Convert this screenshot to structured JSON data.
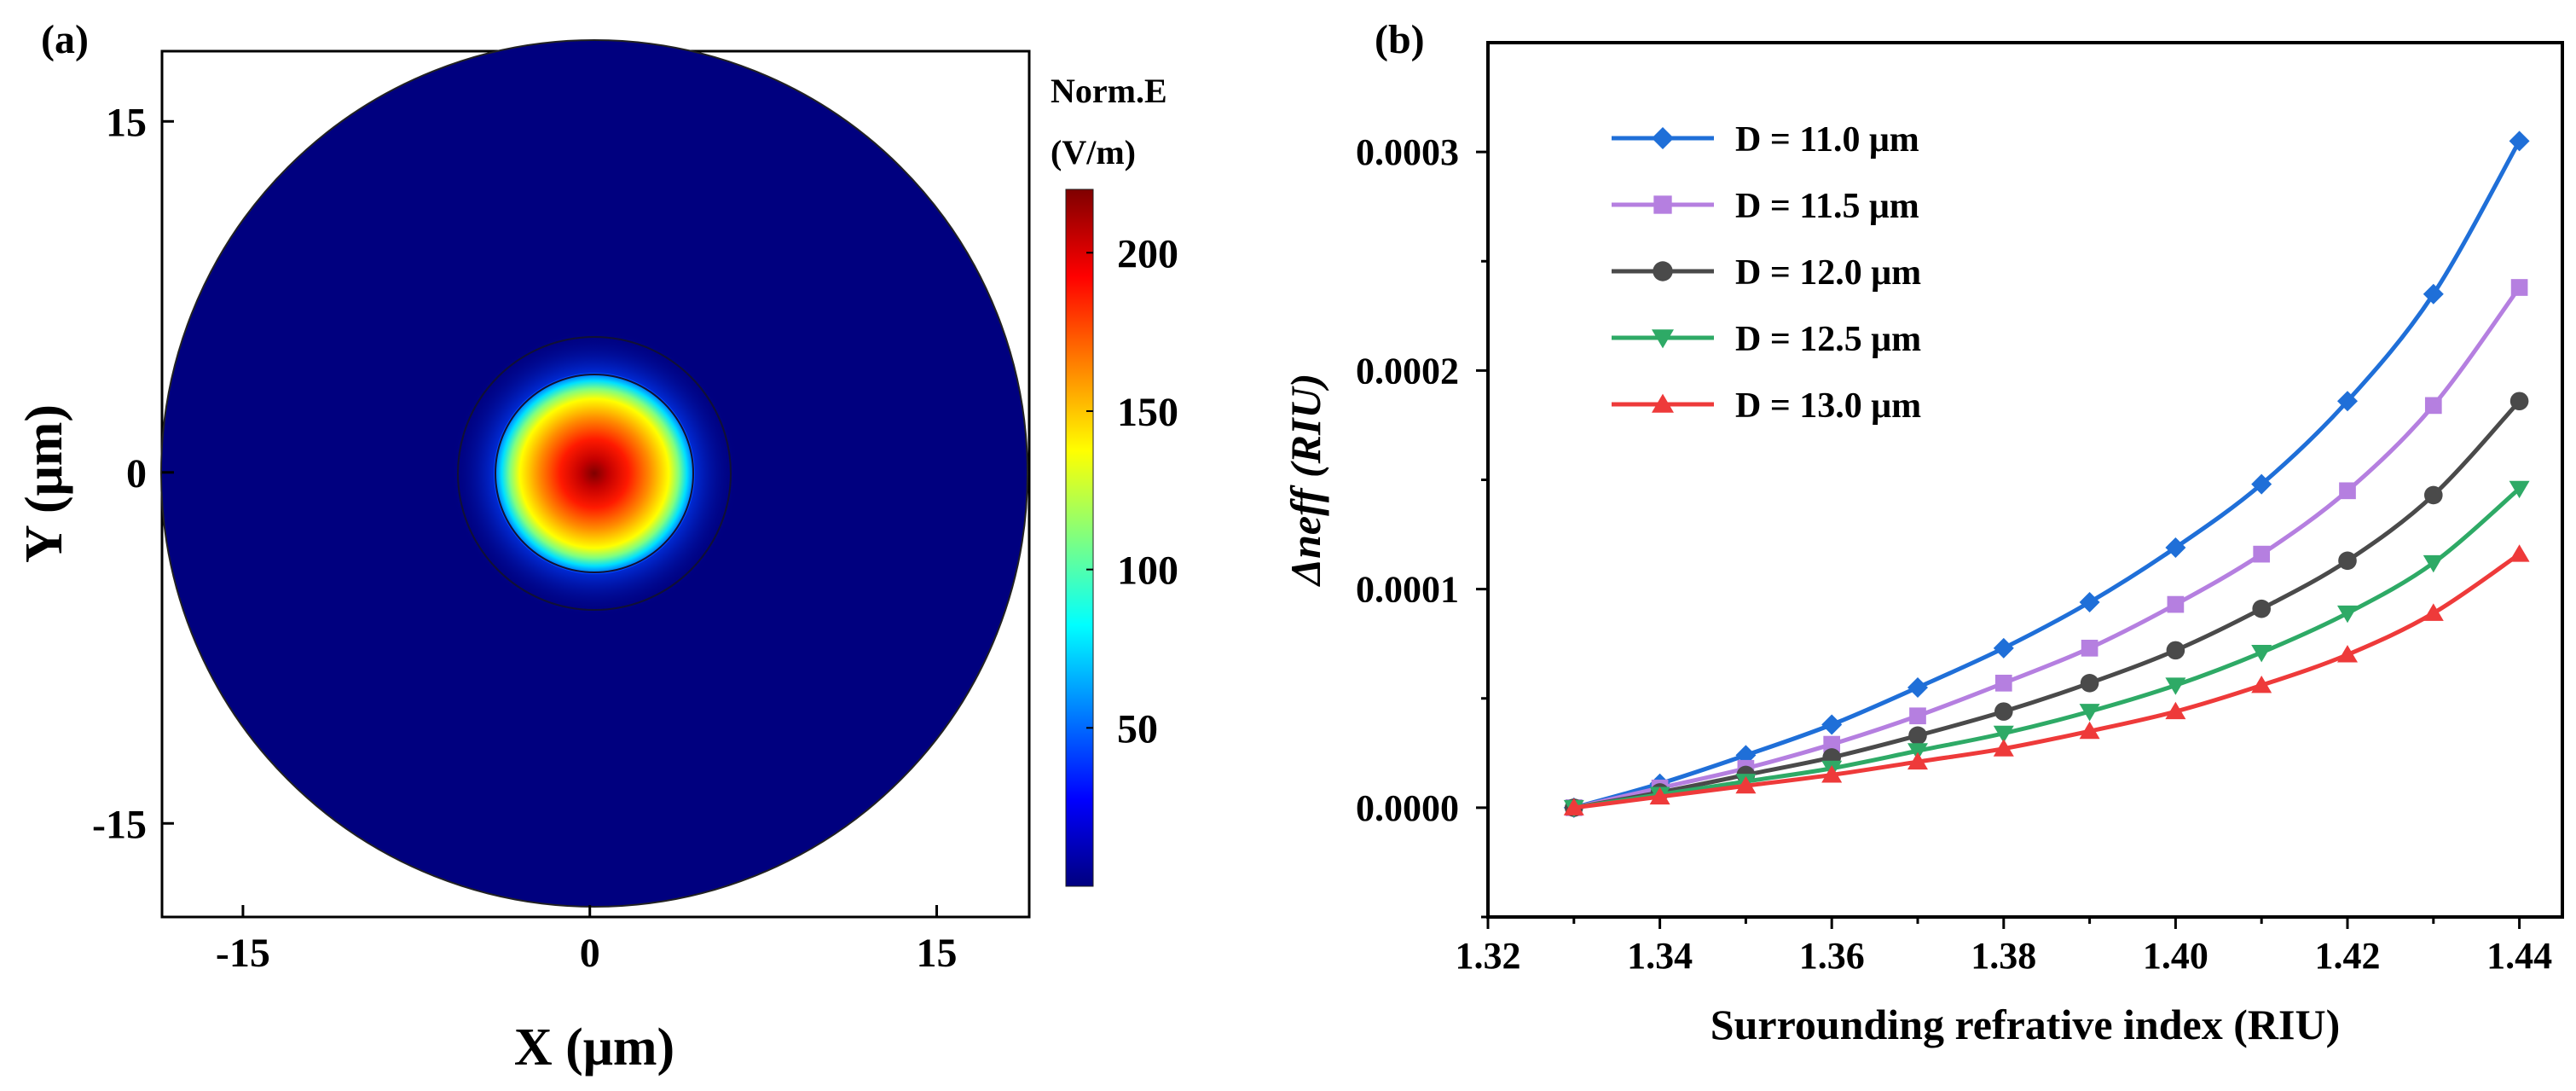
{
  "panel_a": {
    "label": "(a)",
    "x_title": "X (μm)",
    "y_title": "Y (μm)",
    "x_ticks": [
      {
        "value": -15,
        "label": "-15"
      },
      {
        "value": 0,
        "label": "0"
      },
      {
        "value": 15,
        "label": "15"
      }
    ],
    "y_ticks": [
      {
        "value": 15,
        "label": "15"
      },
      {
        "value": 0,
        "label": "0"
      },
      {
        "value": -15,
        "label": "-15"
      }
    ],
    "colorbar": {
      "title_line1": "Norm.E",
      "title_line2": "(V/m)",
      "ticks": [
        {
          "value": 50,
          "label": "50"
        },
        {
          "value": 100,
          "label": "100"
        },
        {
          "value": 150,
          "label": "150"
        },
        {
          "value": 200,
          "label": "200"
        }
      ]
    }
  },
  "chart_data": [
    {
      "type": "heatmap",
      "title": "(a)",
      "xlabel": "X (μm)",
      "ylabel": "Y (μm)",
      "xlim": [
        -18.5,
        19
      ],
      "ylim": [
        -19,
        18
      ],
      "fiber_radius": 18.5,
      "core_ring_radii": [
        4.2,
        5.8
      ],
      "mode_center": [
        0,
        0
      ],
      "colorbar_label": "Norm.E (V/m)",
      "colorbar_range": [
        0,
        220
      ],
      "colorbar_ticks": [
        50,
        100,
        150,
        200
      ],
      "colormap": [
        "#00007f",
        "#0000ff",
        "#00ffff",
        "#ffff00",
        "#ff0000",
        "#7f0000"
      ],
      "peak_value": 220
    },
    {
      "type": "line",
      "title": "(b)",
      "xlabel": "Surrounding refrative index (RIU)",
      "ylabel": "Δneff (RIU)",
      "xlim": [
        1.32,
        1.445
      ],
      "ylim": [
        -5e-05,
        0.00035
      ],
      "x_ticks": [
        {
          "value": 1.32,
          "label": "1.32"
        },
        {
          "value": 1.34,
          "label": "1.34"
        },
        {
          "value": 1.36,
          "label": "1.36"
        },
        {
          "value": 1.38,
          "label": "1.38"
        },
        {
          "value": 1.4,
          "label": "1.40"
        },
        {
          "value": 1.42,
          "label": "1.42"
        },
        {
          "value": 1.44,
          "label": "1.44"
        }
      ],
      "y_ticks": [
        {
          "value": 0,
          "label": "0.0000"
        },
        {
          "value": 0.0001,
          "label": "0.0001"
        },
        {
          "value": 0.0002,
          "label": "0.0002"
        },
        {
          "value": 0.0003,
          "label": "0.0003"
        }
      ],
      "x": [
        1.33,
        1.34,
        1.35,
        1.36,
        1.37,
        1.38,
        1.39,
        1.4,
        1.41,
        1.42,
        1.43,
        1.44
      ],
      "legend_position": "top-left",
      "series": [
        {
          "name": "D = 11.0 μm",
          "color": "#1f6fd8",
          "marker": "diamond",
          "values": [
            0.0,
            1.1e-05,
            2.4e-05,
            3.8e-05,
            5.5e-05,
            7.3e-05,
            9.4e-05,
            0.000119,
            0.000148,
            0.000186,
            0.000235,
            0.000305
          ]
        },
        {
          "name": "D = 11.5 μm",
          "color": "#b57fe0",
          "marker": "square",
          "values": [
            0.0,
            9e-06,
            1.8e-05,
            2.9e-05,
            4.2e-05,
            5.7e-05,
            7.3e-05,
            9.3e-05,
            0.000116,
            0.000145,
            0.000184,
            0.000238
          ]
        },
        {
          "name": "D = 12.0 μm",
          "color": "#4a4a4a",
          "marker": "circle",
          "values": [
            0.0,
            7e-06,
            1.5e-05,
            2.3e-05,
            3.3e-05,
            4.4e-05,
            5.7e-05,
            7.2e-05,
            9.1e-05,
            0.000113,
            0.000143,
            0.000186
          ]
        },
        {
          "name": "D = 12.5 μm",
          "color": "#2eaa66",
          "marker": "triangle-down",
          "values": [
            0.0,
            6e-06,
            1.2e-05,
            1.8e-05,
            2.6e-05,
            3.4e-05,
            4.4e-05,
            5.6e-05,
            7.1e-05,
            8.9e-05,
            0.000112,
            0.000146
          ]
        },
        {
          "name": "D = 13.0 μm",
          "color": "#ee3a3a",
          "marker": "triangle-up",
          "values": [
            0.0,
            5e-06,
            1e-05,
            1.5e-05,
            2.1e-05,
            2.7e-05,
            3.5e-05,
            4.4e-05,
            5.6e-05,
            7e-05,
            8.9e-05,
            0.000116
          ]
        }
      ]
    }
  ]
}
